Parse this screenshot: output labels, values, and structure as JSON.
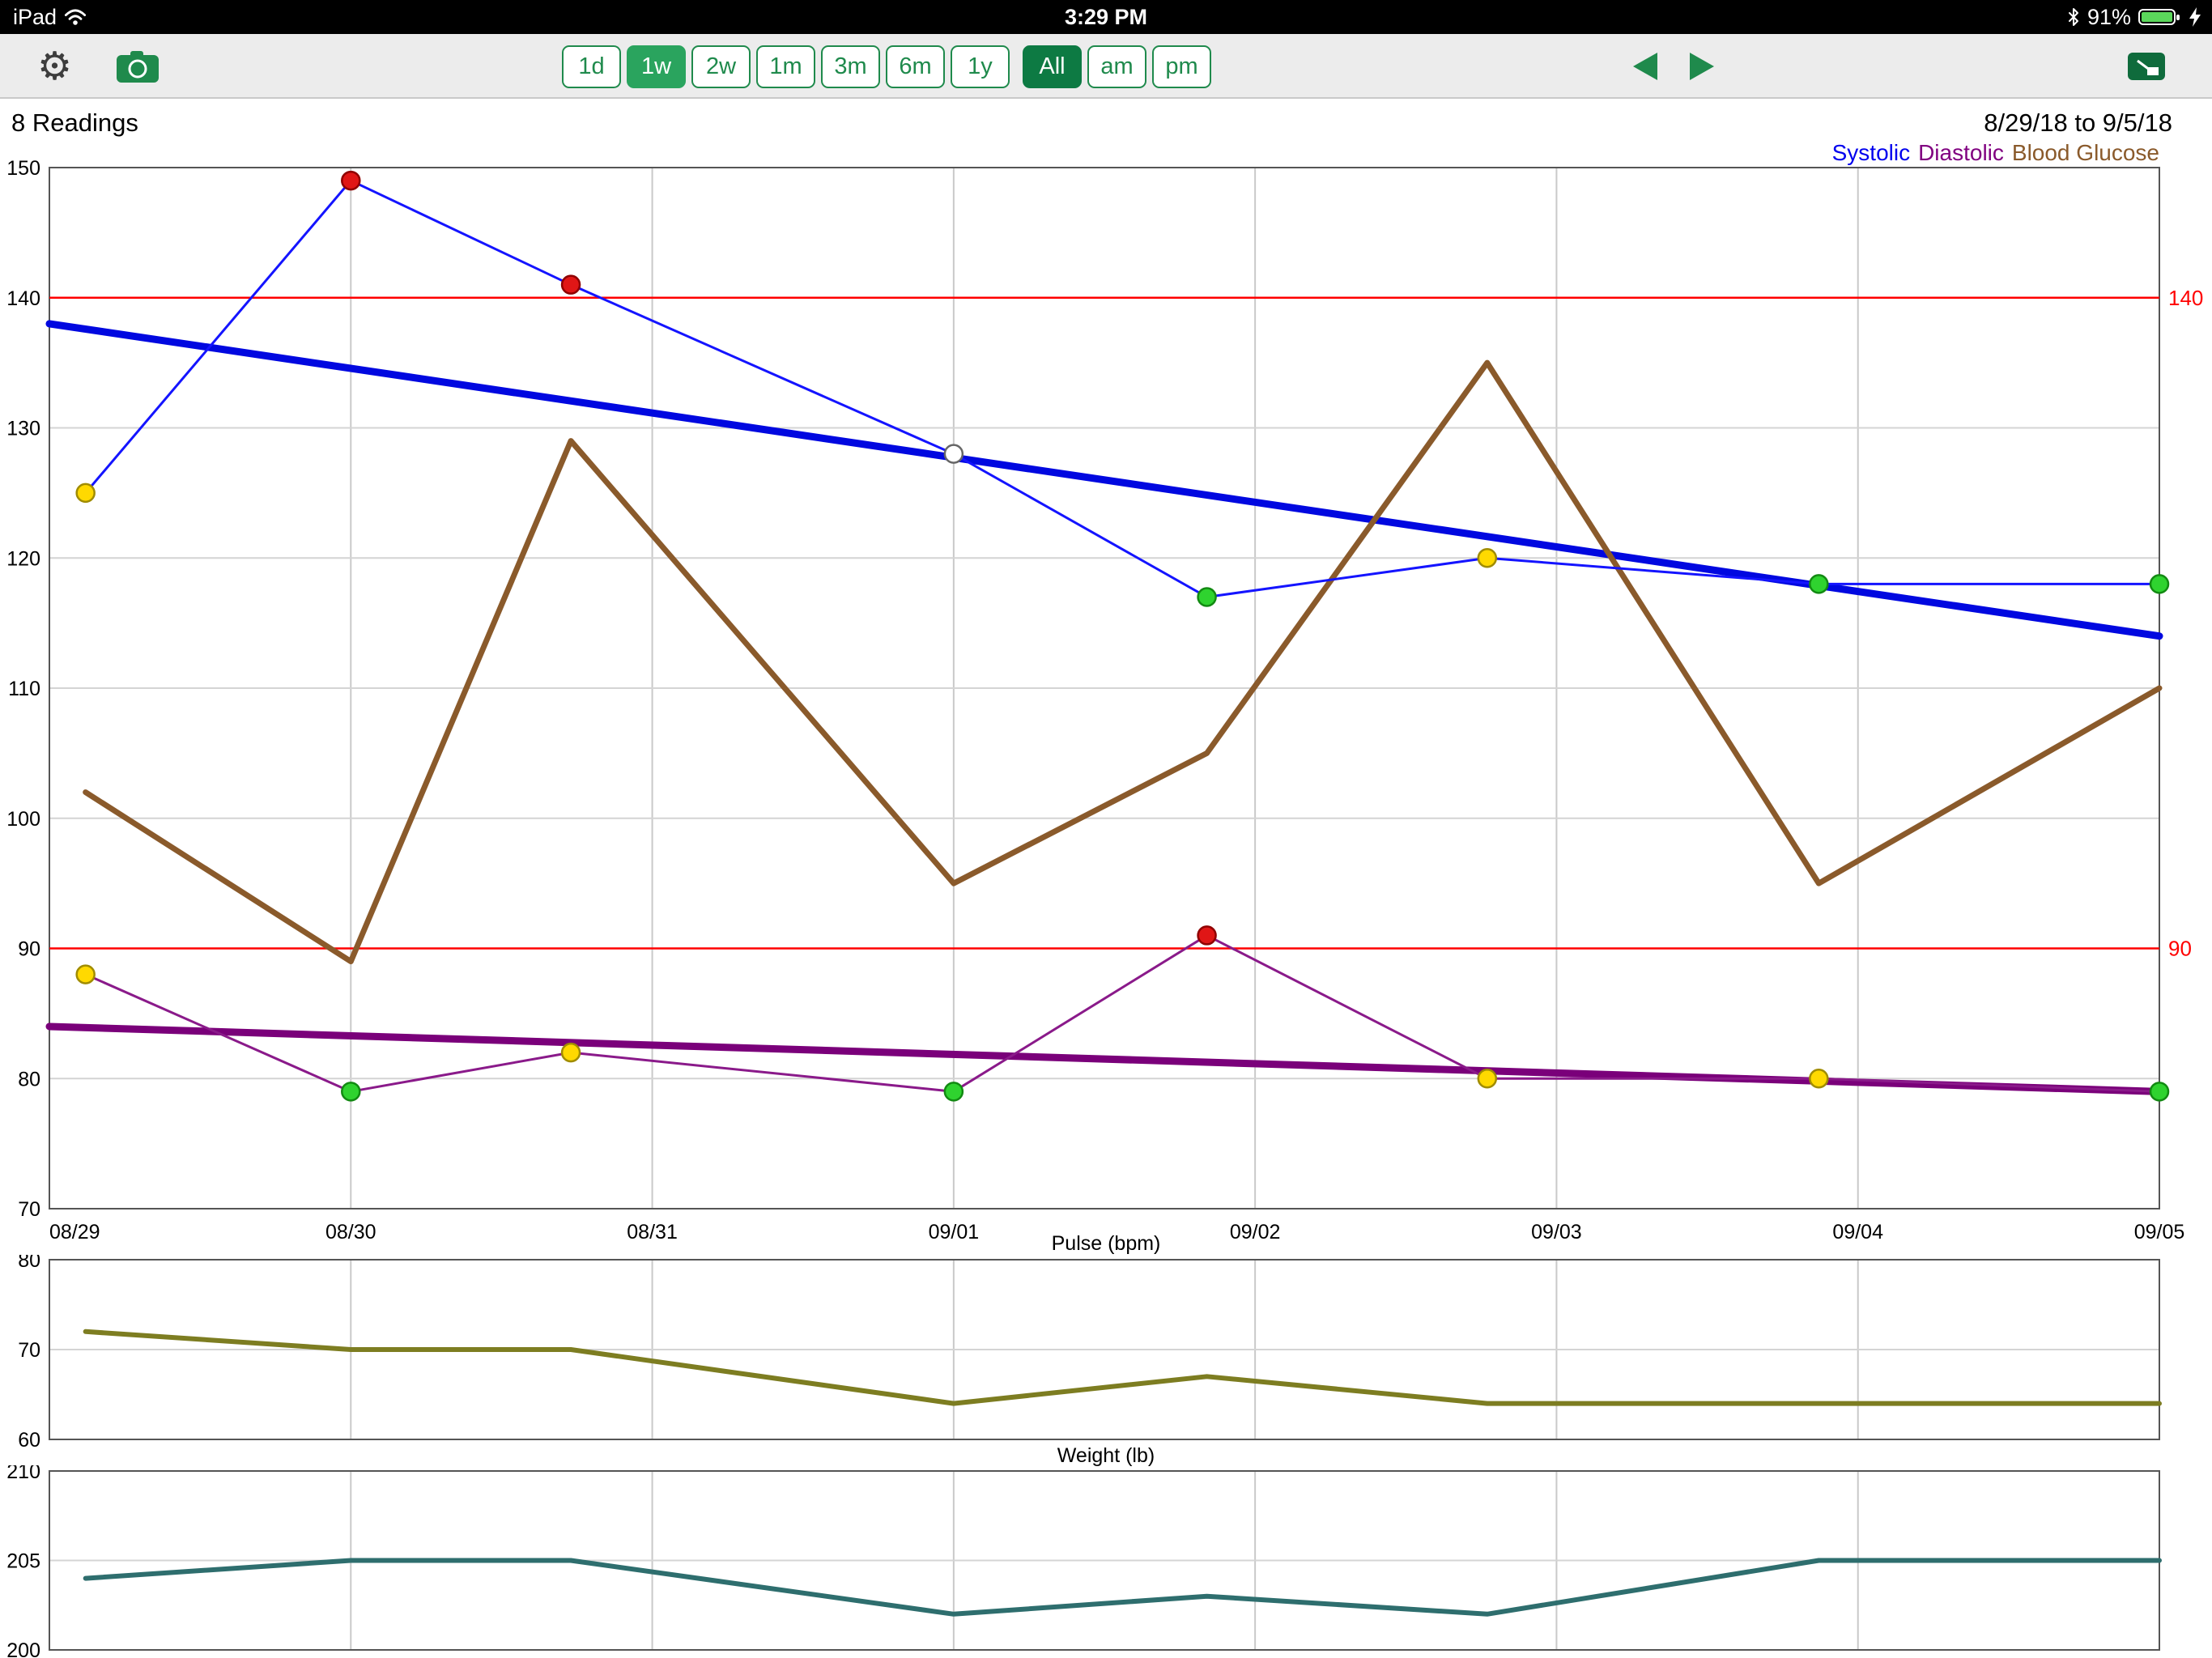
{
  "status_bar": {
    "device": "iPad",
    "time": "3:29 PM",
    "battery_percent": "91%"
  },
  "toolbar": {
    "range_buttons": [
      {
        "label": "1d",
        "selected": false
      },
      {
        "label": "1w",
        "selected": true
      },
      {
        "label": "2w",
        "selected": false
      },
      {
        "label": "1m",
        "selected": false
      },
      {
        "label": "3m",
        "selected": false
      },
      {
        "label": "6m",
        "selected": false
      },
      {
        "label": "1y",
        "selected": false
      }
    ],
    "filter_buttons": [
      {
        "label": "All",
        "selected": true
      },
      {
        "label": "am",
        "selected": false
      },
      {
        "label": "pm",
        "selected": false
      }
    ]
  },
  "header": {
    "readings_count": "8 Readings",
    "date_range": "8/29/18 to 9/5/18"
  },
  "legend": [
    {
      "label": "Systolic",
      "color": "#0000ee"
    },
    {
      "label": "Diastolic",
      "color": "#800080"
    },
    {
      "label": "Blood Glucose",
      "color": "#8a5a2b"
    }
  ],
  "marker_colors": {
    "green": "#2fd32f",
    "yellow": "#ffd900",
    "red": "#e01616",
    "open": "#ffffff"
  },
  "marker_strokes": {
    "green": "#128a12",
    "yellow": "#a08c00",
    "red": "#8f0000",
    "open": "#666666"
  },
  "chart_data": [
    {
      "id": "bp",
      "type": "line",
      "x_range": [
        0,
        7
      ],
      "x_labels": [
        "08/29",
        "08/30",
        "08/31",
        "09/01",
        "09/02",
        "09/03",
        "09/04",
        "09/05"
      ],
      "ylim": [
        70,
        150
      ],
      "yticks": [
        70,
        80,
        90,
        100,
        110,
        120,
        130,
        140,
        150
      ],
      "thresholds": [
        {
          "value": 140,
          "label": "140",
          "color": "#ff0000"
        },
        {
          "value": 90,
          "label": "90",
          "color": "#ff0000"
        }
      ],
      "x": [
        0.12,
        1.0,
        1.73,
        3.0,
        3.84,
        4.77,
        5.87,
        7.0
      ],
      "series": [
        {
          "name": "Systolic trend",
          "color": "#0008e0",
          "width": 9,
          "x": [
            0,
            7
          ],
          "values": [
            138,
            114
          ]
        },
        {
          "name": "Diastolic trend",
          "color": "#7a007a",
          "width": 9,
          "x": [
            0,
            7
          ],
          "values": [
            84,
            79
          ]
        },
        {
          "name": "Blood Glucose",
          "color": "#8a5a2b",
          "width": 7,
          "values": [
            102,
            89,
            129,
            95,
            105,
            135,
            95,
            110
          ]
        },
        {
          "name": "Systolic",
          "color": "#1414ff",
          "width": 3,
          "values": [
            125,
            149,
            141,
            128,
            117,
            120,
            118,
            118
          ],
          "markers": [
            "yellow",
            "red",
            "red",
            "open",
            "green",
            "yellow",
            "green",
            "green"
          ]
        },
        {
          "name": "Diastolic",
          "color": "#8a1a8a",
          "width": 3,
          "values": [
            88,
            79,
            82,
            79,
            91,
            80,
            80,
            79
          ],
          "markers": [
            "yellow",
            "green",
            "yellow",
            "green",
            "red",
            "yellow",
            "yellow",
            "green"
          ]
        }
      ]
    },
    {
      "id": "pulse",
      "type": "line",
      "title": "Pulse (bpm)",
      "x_range": [
        0,
        7
      ],
      "ylim": [
        60,
        80
      ],
      "yticks": [
        60,
        70,
        80
      ],
      "x": [
        0.12,
        1.0,
        1.73,
        3.0,
        3.84,
        4.77,
        5.87,
        7.0
      ],
      "series": [
        {
          "name": "Pulse",
          "color": "#7d7d21",
          "width": 6,
          "values": [
            72,
            70,
            70,
            64,
            67,
            64,
            64,
            64
          ]
        }
      ]
    },
    {
      "id": "weight",
      "type": "line",
      "title": "Weight (lb)",
      "x_range": [
        0,
        7
      ],
      "ylim": [
        200,
        210
      ],
      "yticks": [
        200,
        205,
        210
      ],
      "x": [
        0.12,
        1.0,
        1.73,
        3.0,
        3.84,
        4.77,
        5.87,
        7.0
      ],
      "series": [
        {
          "name": "Weight",
          "color": "#2e6e6e",
          "width": 6,
          "values": [
            204,
            205,
            205,
            202,
            203,
            202,
            205,
            205
          ]
        }
      ]
    }
  ]
}
